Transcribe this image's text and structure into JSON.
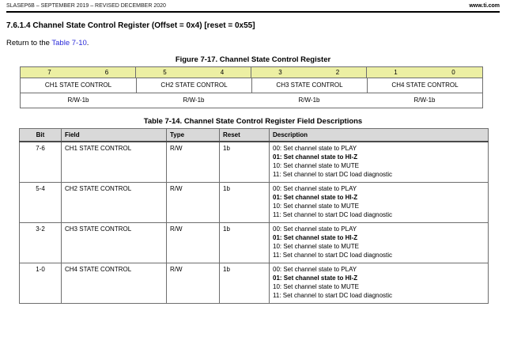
{
  "colors": {
    "link_blue": "#2b2bd9",
    "register_bits_bg": "#ecefa3",
    "table_header_bg": "#d9d9d9"
  },
  "header": {
    "left": "SLASEP6B – SEPTEMBER 2019 – REVISED DECEMBER 2020",
    "right": "www.ti.com"
  },
  "section": {
    "heading": "7.6.1.4 Channel State Control Register (Offset = 0x4) [reset = 0x55]",
    "return_prefix": "Return to the ",
    "return_link": "Table 7-10",
    "return_suffix": "."
  },
  "figure": {
    "caption": "Figure 7-17. Channel State Control Register",
    "bit_numbers": [
      "7",
      "6",
      "5",
      "4",
      "3",
      "2",
      "1",
      "0"
    ],
    "fields": [
      {
        "name": "CH1 STATE CONTROL",
        "access": "R/W-1b"
      },
      {
        "name": "CH2 STATE CONTROL",
        "access": "R/W-1b"
      },
      {
        "name": "CH3 STATE CONTROL",
        "access": "R/W-1b"
      },
      {
        "name": "CH4 STATE CONTROL",
        "access": "R/W-1b"
      }
    ]
  },
  "table": {
    "caption": "Table 7-14. Channel State Control Register Field Descriptions",
    "columns": [
      "Bit",
      "Field",
      "Type",
      "Reset",
      "Description"
    ],
    "rows": [
      {
        "bit": "7-6",
        "field": "CH1 STATE CONTROL",
        "type": "R/W",
        "reset": "1b",
        "description": [
          {
            "text": "00: Set channel state to PLAY",
            "bold": false
          },
          {
            "text": "01: Set channel state to HI-Z",
            "bold": true
          },
          {
            "text": "10: Set channel state to MUTE",
            "bold": false
          },
          {
            "text": "11: Set channel to start DC load diagnostic",
            "bold": false
          }
        ]
      },
      {
        "bit": "5-4",
        "field": "CH2 STATE CONTROL",
        "type": "R/W",
        "reset": "1b",
        "description": [
          {
            "text": "00: Set channel state to PLAY",
            "bold": false
          },
          {
            "text": "01: Set channel state to HI-Z",
            "bold": true
          },
          {
            "text": "10: Set channel state to MUTE",
            "bold": false
          },
          {
            "text": "11: Set channel to start DC load diagnostic",
            "bold": false
          }
        ]
      },
      {
        "bit": "3-2",
        "field": "CH3 STATE CONTROL",
        "type": "R/W",
        "reset": "1b",
        "description": [
          {
            "text": "00: Set channel state to PLAY",
            "bold": false
          },
          {
            "text": "01: Set channel state to HI-Z",
            "bold": true
          },
          {
            "text": "10: Set channel state to MUTE",
            "bold": false
          },
          {
            "text": "11: Set channel to start DC load diagnostic",
            "bold": false
          }
        ]
      },
      {
        "bit": "1-0",
        "field": "CH4 STATE CONTROL",
        "type": "R/W",
        "reset": "1b",
        "description": [
          {
            "text": "00: Set channel state to PLAY",
            "bold": false
          },
          {
            "text": "01: Set channel state to HI-Z",
            "bold": true
          },
          {
            "text": "10: Set channel state to MUTE",
            "bold": false
          },
          {
            "text": "11: Set channel to start DC load diagnostic",
            "bold": false
          }
        ]
      }
    ]
  }
}
